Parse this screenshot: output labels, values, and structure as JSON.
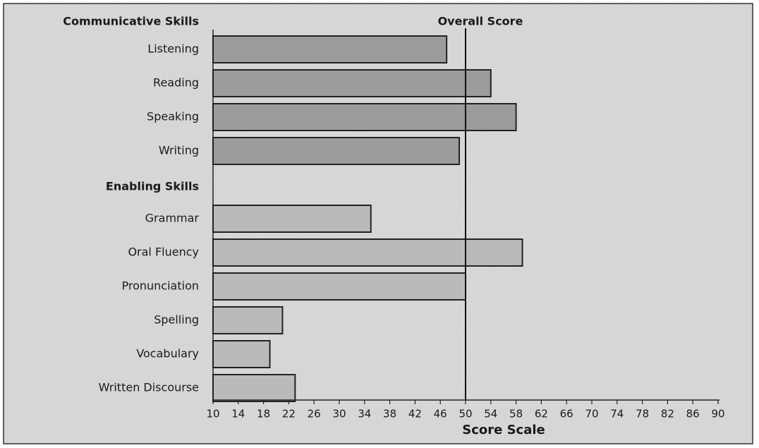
{
  "chart_data": {
    "type": "bar",
    "orientation": "horizontal",
    "groups": [
      {
        "name": "Communicative Skills",
        "color": "#9c9c9c",
        "categories": [
          "Listening",
          "Reading",
          "Speaking",
          "Writing"
        ],
        "values": [
          47,
          54,
          58,
          49
        ]
      },
      {
        "name": "Enabling Skills",
        "color": "#bababa",
        "categories": [
          "Grammar",
          "Oral Fluency",
          "Pronunciation",
          "Spelling",
          "Vocabulary",
          "Written Discourse"
        ],
        "values": [
          35,
          59,
          50,
          21,
          19,
          23
        ]
      }
    ],
    "reference_line": {
      "label": "Overall Score",
      "value": 50
    },
    "xlabel": "Score Scale",
    "xlim": [
      10,
      90
    ],
    "xticks": [
      10,
      14,
      18,
      22,
      26,
      30,
      34,
      38,
      42,
      46,
      50,
      54,
      58,
      62,
      66,
      70,
      74,
      78,
      82,
      86,
      90
    ]
  }
}
